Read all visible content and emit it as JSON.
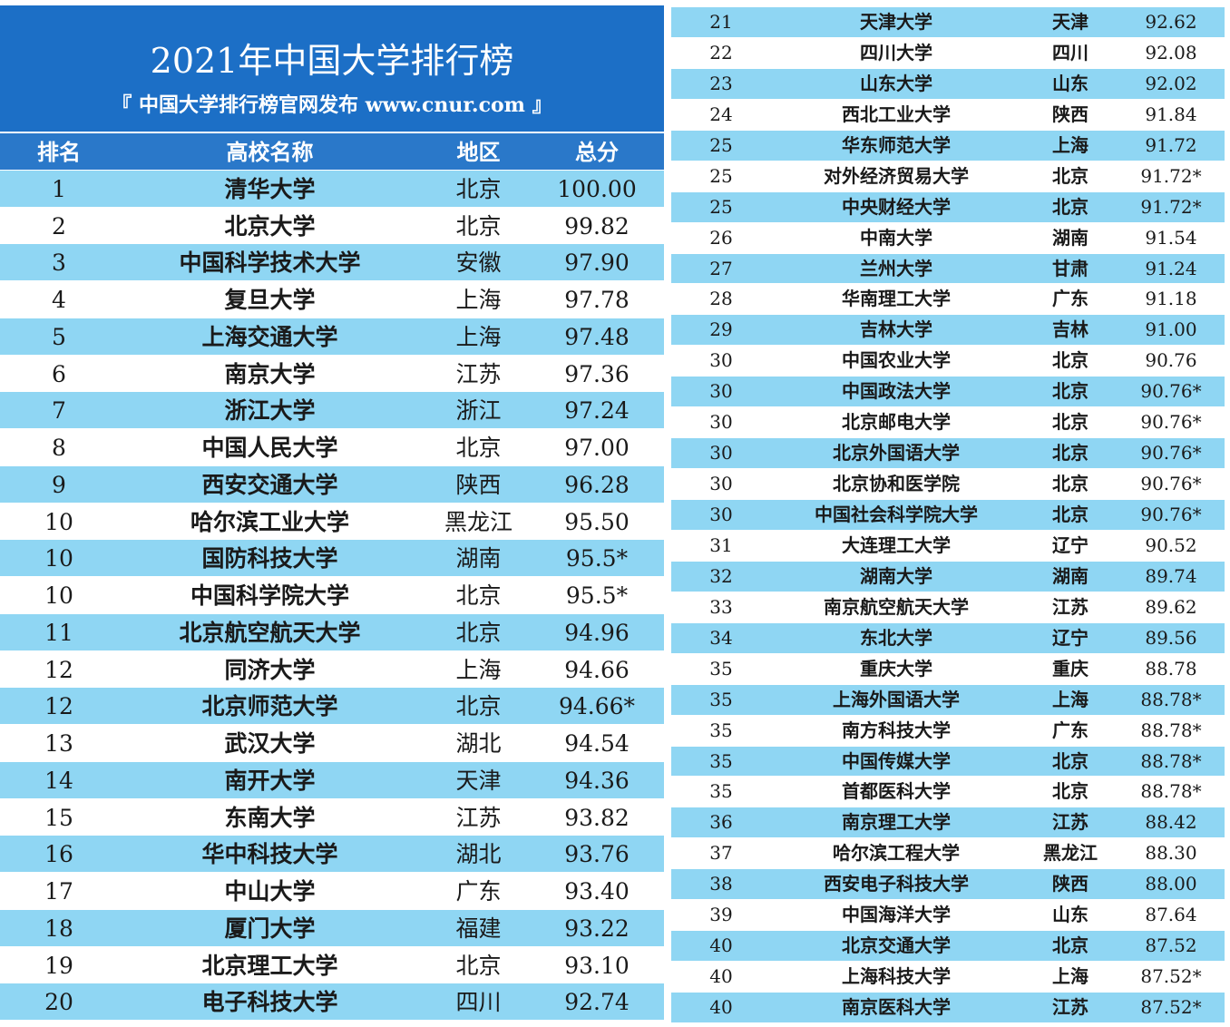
{
  "header": {
    "title": "2021年中国大学排行榜",
    "subtitle": "『 中国大学排行榜官网发布 www.cnur.com 』"
  },
  "left_table": {
    "columns": [
      "排名",
      "高校名称",
      "地区",
      "总分"
    ],
    "rows": [
      [
        "1",
        "清华大学",
        "北京",
        "100.00"
      ],
      [
        "2",
        "北京大学",
        "北京",
        "99.82"
      ],
      [
        "3",
        "中国科学技术大学",
        "安徽",
        "97.90"
      ],
      [
        "4",
        "复旦大学",
        "上海",
        "97.78"
      ],
      [
        "5",
        "上海交通大学",
        "上海",
        "97.48"
      ],
      [
        "6",
        "南京大学",
        "江苏",
        "97.36"
      ],
      [
        "7",
        "浙江大学",
        "浙江",
        "97.24"
      ],
      [
        "8",
        "中国人民大学",
        "北京",
        "97.00"
      ],
      [
        "9",
        "西安交通大学",
        "陕西",
        "96.28"
      ],
      [
        "10",
        "哈尔滨工业大学",
        "黑龙江",
        "95.50"
      ],
      [
        "10",
        "国防科技大学",
        "湖南",
        "95.5*"
      ],
      [
        "10",
        "中国科学院大学",
        "北京",
        "95.5*"
      ],
      [
        "11",
        "北京航空航天大学",
        "北京",
        "94.96"
      ],
      [
        "12",
        "同济大学",
        "上海",
        "94.66"
      ],
      [
        "12",
        "北京师范大学",
        "北京",
        "94.66*"
      ],
      [
        "13",
        "武汉大学",
        "湖北",
        "94.54"
      ],
      [
        "14",
        "南开大学",
        "天津",
        "94.36"
      ],
      [
        "15",
        "东南大学",
        "江苏",
        "93.82"
      ],
      [
        "16",
        "华中科技大学",
        "湖北",
        "93.76"
      ],
      [
        "17",
        "中山大学",
        "广东",
        "93.40"
      ],
      [
        "18",
        "厦门大学",
        "福建",
        "93.22"
      ],
      [
        "19",
        "北京理工大学",
        "北京",
        "93.10"
      ],
      [
        "20",
        "电子科技大学",
        "四川",
        "92.74"
      ]
    ]
  },
  "right_table": {
    "rows": [
      [
        "21",
        "天津大学",
        "天津",
        "92.62"
      ],
      [
        "22",
        "四川大学",
        "四川",
        "92.08"
      ],
      [
        "23",
        "山东大学",
        "山东",
        "92.02"
      ],
      [
        "24",
        "西北工业大学",
        "陕西",
        "91.84"
      ],
      [
        "25",
        "华东师范大学",
        "上海",
        "91.72"
      ],
      [
        "25",
        "对外经济贸易大学",
        "北京",
        "91.72*"
      ],
      [
        "25",
        "中央财经大学",
        "北京",
        "91.72*"
      ],
      [
        "26",
        "中南大学",
        "湖南",
        "91.54"
      ],
      [
        "27",
        "兰州大学",
        "甘肃",
        "91.24"
      ],
      [
        "28",
        "华南理工大学",
        "广东",
        "91.18"
      ],
      [
        "29",
        "吉林大学",
        "吉林",
        "91.00"
      ],
      [
        "30",
        "中国农业大学",
        "北京",
        "90.76"
      ],
      [
        "30",
        "中国政法大学",
        "北京",
        "90.76*"
      ],
      [
        "30",
        "北京邮电大学",
        "北京",
        "90.76*"
      ],
      [
        "30",
        "北京外国语大学",
        "北京",
        "90.76*"
      ],
      [
        "30",
        "北京协和医学院",
        "北京",
        "90.76*"
      ],
      [
        "30",
        "中国社会科学院大学",
        "北京",
        "90.76*"
      ],
      [
        "31",
        "大连理工大学",
        "辽宁",
        "90.52"
      ],
      [
        "32",
        "湖南大学",
        "湖南",
        "89.74"
      ],
      [
        "33",
        "南京航空航天大学",
        "江苏",
        "89.62"
      ],
      [
        "34",
        "东北大学",
        "辽宁",
        "89.56"
      ],
      [
        "35",
        "重庆大学",
        "重庆",
        "88.78"
      ],
      [
        "35",
        "上海外国语大学",
        "上海",
        "88.78*"
      ],
      [
        "35",
        "南方科技大学",
        "广东",
        "88.78*"
      ],
      [
        "35",
        "中国传媒大学",
        "北京",
        "88.78*"
      ],
      [
        "35",
        "首都医科大学",
        "北京",
        "88.78*"
      ],
      [
        "36",
        "南京理工大学",
        "江苏",
        "88.42"
      ],
      [
        "37",
        "哈尔滨工程大学",
        "黑龙江",
        "88.30"
      ],
      [
        "38",
        "西安电子科技大学",
        "陕西",
        "88.00"
      ],
      [
        "39",
        "中国海洋大学",
        "山东",
        "87.64"
      ],
      [
        "40",
        "北京交通大学",
        "北京",
        "87.52"
      ],
      [
        "40",
        "上海科技大学",
        "上海",
        "87.52*"
      ],
      [
        "40",
        "南京医科大学",
        "江苏",
        "87.52*"
      ]
    ]
  }
}
